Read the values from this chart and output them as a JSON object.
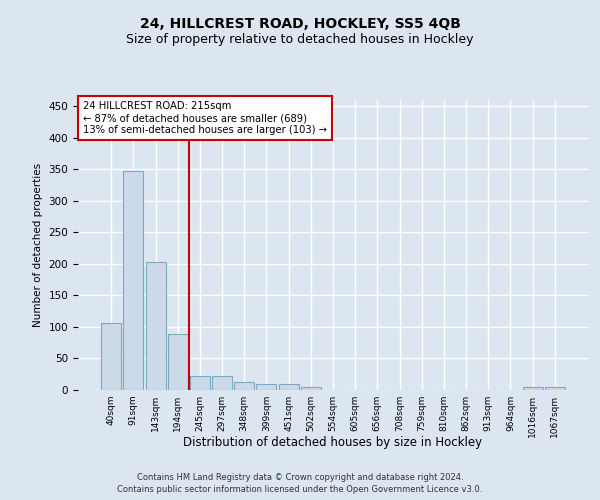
{
  "title": "24, HILLCREST ROAD, HOCKLEY, SS5 4QB",
  "subtitle": "Size of property relative to detached houses in Hockley",
  "xlabel": "Distribution of detached houses by size in Hockley",
  "ylabel": "Number of detached properties",
  "footer_line1": "Contains HM Land Registry data © Crown copyright and database right 2024.",
  "footer_line2": "Contains public sector information licensed under the Open Government Licence v3.0.",
  "categories": [
    "40sqm",
    "91sqm",
    "143sqm",
    "194sqm",
    "245sqm",
    "297sqm",
    "348sqm",
    "399sqm",
    "451sqm",
    "502sqm",
    "554sqm",
    "605sqm",
    "656sqm",
    "708sqm",
    "759sqm",
    "810sqm",
    "862sqm",
    "913sqm",
    "964sqm",
    "1016sqm",
    "1067sqm"
  ],
  "values": [
    107,
    347,
    203,
    89,
    23,
    23,
    13,
    9,
    9,
    5,
    0,
    0,
    0,
    0,
    0,
    0,
    0,
    0,
    0,
    4,
    4
  ],
  "bar_color": "#ccd9e8",
  "bar_edge_color": "#7aaac8",
  "red_line_x": 3.5,
  "annotation_text": "24 HILLCREST ROAD: 215sqm\n← 87% of detached houses are smaller (689)\n13% of semi-detached houses are larger (103) →",
  "annotation_box_color": "white",
  "annotation_box_edge_color": "#cc0000",
  "red_line_color": "#cc0000",
  "ylim": [
    0,
    460
  ],
  "yticks": [
    0,
    50,
    100,
    150,
    200,
    250,
    300,
    350,
    400,
    450
  ],
  "bg_color": "#dce6f0",
  "plot_bg_color": "#dce6f0",
  "grid_color": "white",
  "title_fontsize": 10,
  "subtitle_fontsize": 9
}
